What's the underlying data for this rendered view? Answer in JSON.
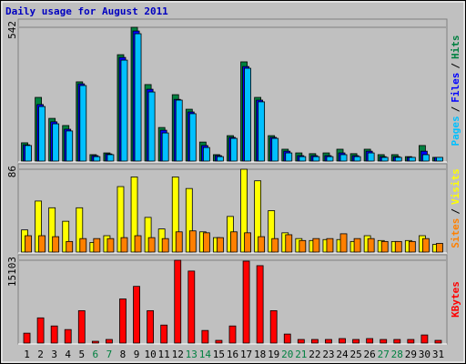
{
  "chart_data": [
    {
      "type": "bar",
      "title": "Daily usage for August 2011",
      "legend_separator": "/",
      "ylim": [
        0,
        542
      ],
      "yticks": [
        542
      ],
      "grid": true,
      "series": [
        {
          "name": "Pages",
          "color": "#00c0ff",
          "values": [
            63,
            221,
            151,
            122,
            306,
            18,
            26,
            409,
            516,
            280,
            114,
            247,
            192,
            55,
            18,
            92,
            376,
            240,
            92,
            33,
            18,
            18,
            18,
            26,
            18,
            33,
            15,
            15,
            15,
            26,
            15
          ]
        },
        {
          "name": "Files",
          "color": "#0000ff",
          "values": [
            66,
            229,
            159,
            129,
            313,
            22,
            29,
            420,
            527,
            291,
            125,
            250,
            199,
            63,
            22,
            96,
            383,
            247,
            96,
            40,
            22,
            22,
            22,
            33,
            22,
            40,
            18,
            18,
            15,
            40,
            15
          ]
        },
        {
          "name": "Hits",
          "color": "#008040",
          "values": [
            74,
            258,
            173,
            144,
            321,
            26,
            33,
            431,
            542,
            310,
            136,
            269,
            210,
            77,
            26,
            103,
            402,
            258,
            103,
            48,
            33,
            30,
            33,
            48,
            30,
            48,
            26,
            26,
            18,
            63,
            15
          ]
        }
      ]
    },
    {
      "type": "bar",
      "legend_separator": "/",
      "ylim": [
        0,
        86
      ],
      "yticks": [
        86
      ],
      "grid": true,
      "series": [
        {
          "name": "Sites",
          "color": "#ff8000",
          "values": [
            17,
            17,
            16,
            11,
            14,
            14,
            14,
            15,
            17,
            15,
            14,
            21,
            22,
            20,
            15,
            21,
            20,
            16,
            14,
            18,
            12,
            14,
            14,
            19,
            14,
            14,
            11,
            11,
            11,
            14,
            9
          ]
        },
        {
          "name": "Visits",
          "color": "#ffff00",
          "values": [
            23,
            53,
            46,
            32,
            46,
            10,
            17,
            68,
            78,
            36,
            24,
            78,
            66,
            21,
            15,
            37,
            86,
            74,
            43,
            20,
            14,
            12,
            13,
            13,
            11,
            17,
            12,
            11,
            12,
            17,
            8
          ]
        }
      ]
    },
    {
      "type": "bar",
      "ylim": [
        0,
        15103
      ],
      "yticks": [
        15103
      ],
      "grid": true,
      "categories": [
        "1",
        "2",
        "3",
        "4",
        "5",
        "6",
        "7",
        "8",
        "9",
        "10",
        "11",
        "12",
        "13",
        "14",
        "15",
        "16",
        "17",
        "18",
        "19",
        "20",
        "21",
        "22",
        "23",
        "24",
        "25",
        "26",
        "27",
        "28",
        "29",
        "30",
        "31"
      ],
      "category_colors": [
        "#000000",
        "#000000",
        "#000000",
        "#000000",
        "#000000",
        "#008040",
        "#008040",
        "#000000",
        "#000000",
        "#000000",
        "#000000",
        "#000000",
        "#008040",
        "#008040",
        "#000000",
        "#000000",
        "#000000",
        "#000000",
        "#000000",
        "#008040",
        "#008040",
        "#000000",
        "#000000",
        "#000000",
        "#000000",
        "#000000",
        "#008040",
        "#008040",
        "#000000",
        "#000000",
        "#000000"
      ],
      "series": [
        {
          "name": "KBytes",
          "color": "#ff0000",
          "values": [
            1806,
            4597,
            3119,
            2463,
            5910,
            328,
            657,
            8046,
            10343,
            5910,
            3283,
            15103,
            13134,
            2299,
            493,
            3119,
            14939,
            14118,
            5910,
            1642,
            657,
            657,
            657,
            821,
            657,
            821,
            657,
            657,
            657,
            1478,
            493
          ]
        }
      ]
    }
  ]
}
